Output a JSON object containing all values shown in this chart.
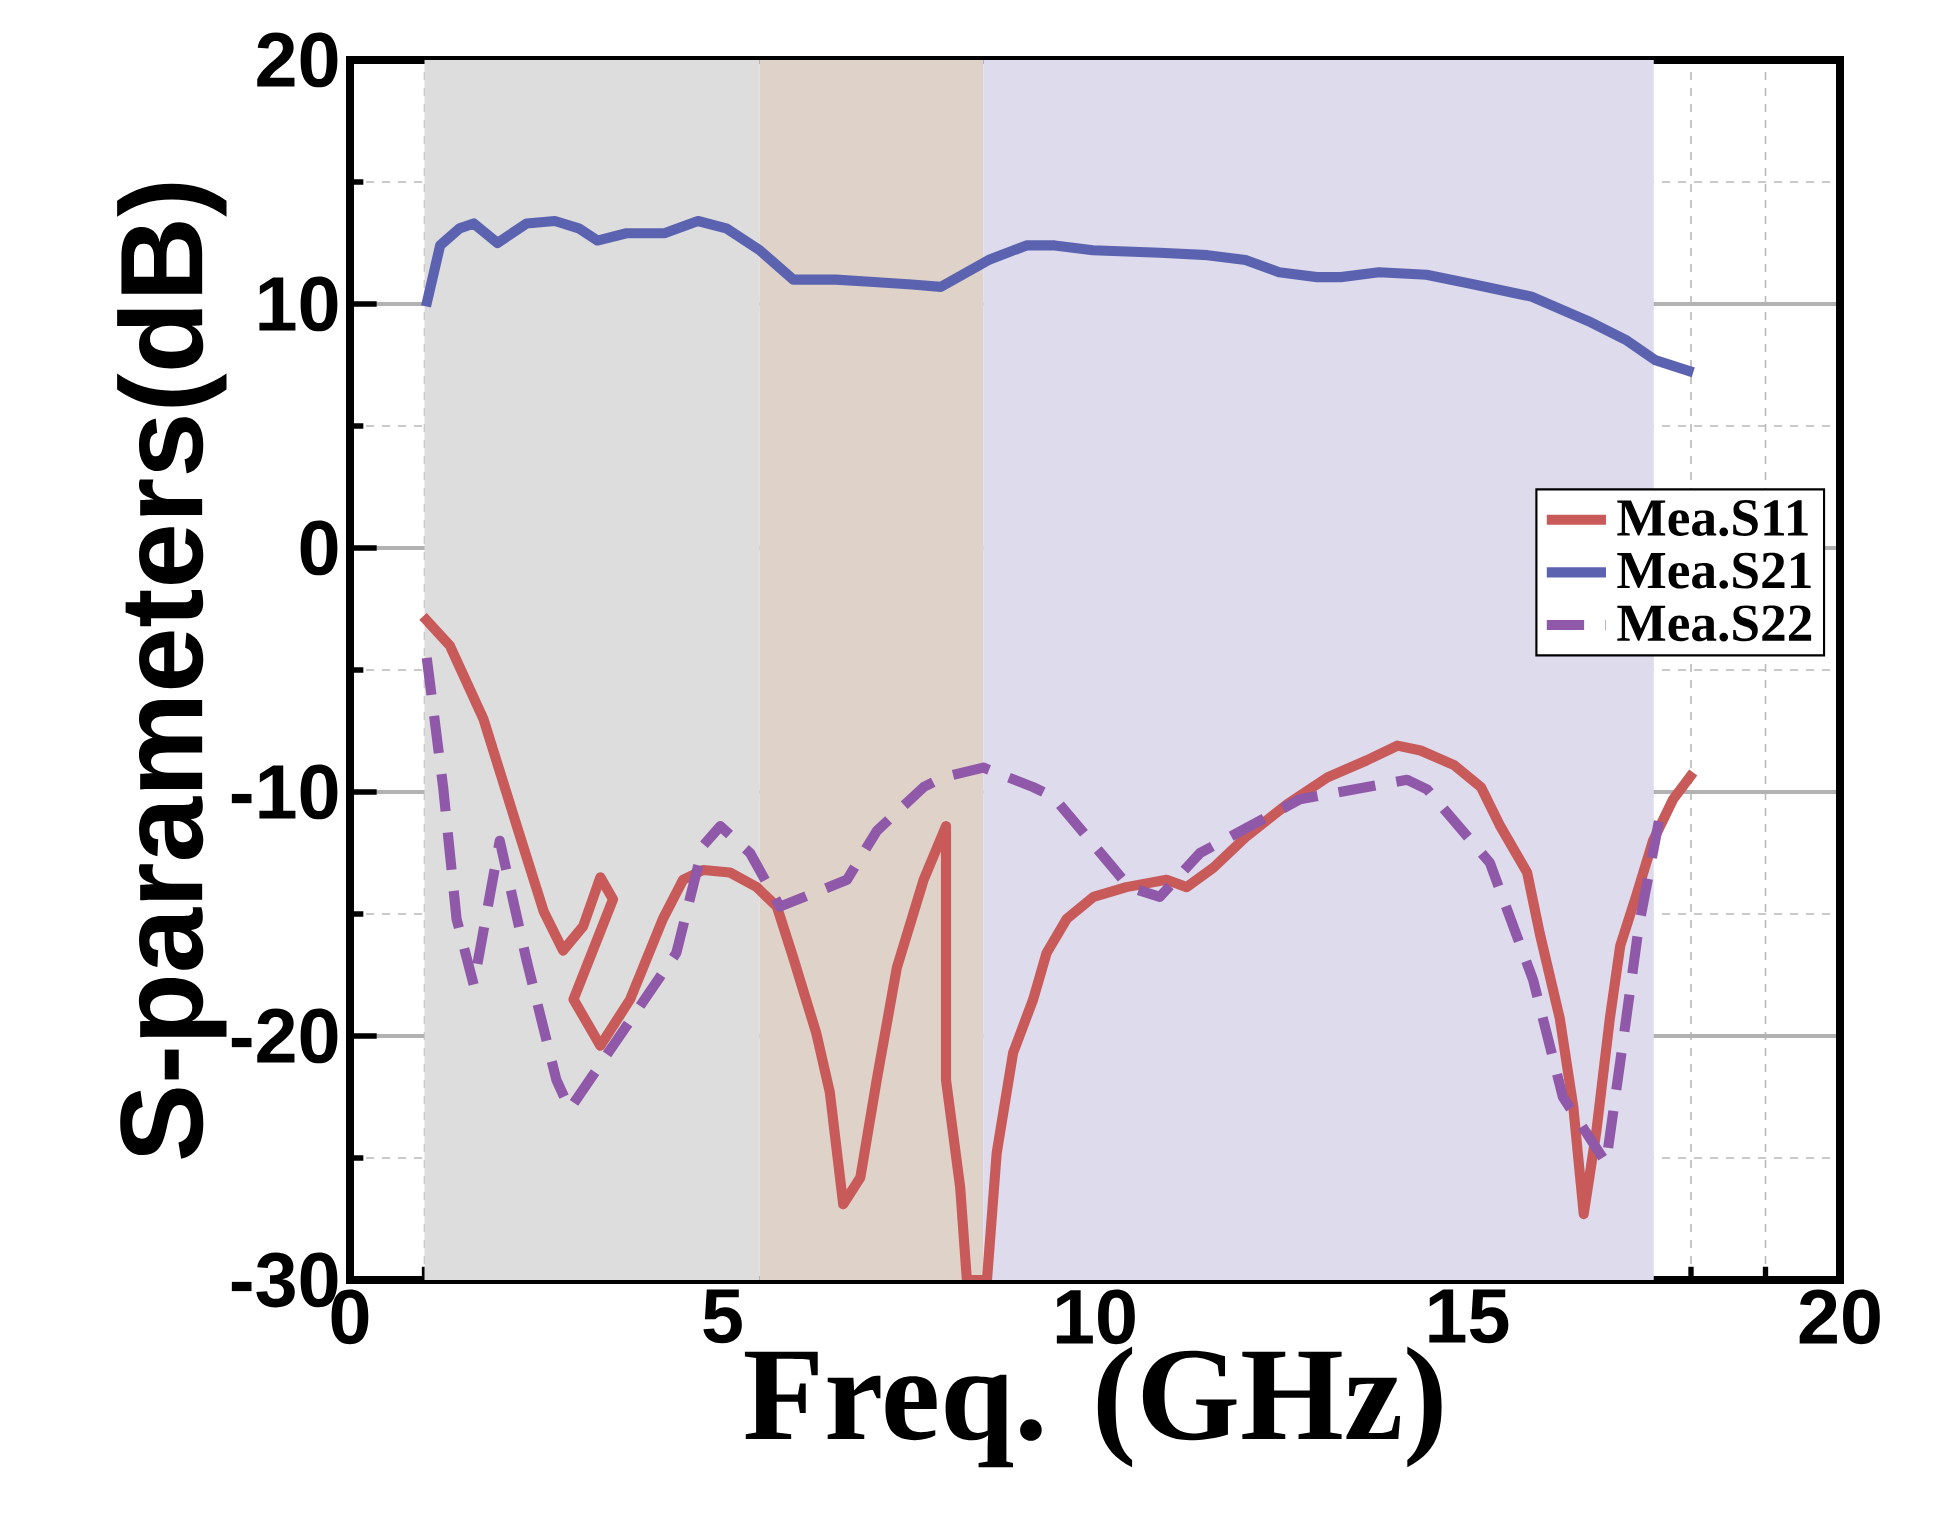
{
  "chart_data": {
    "type": "line",
    "xlabel": "Freq. (GHz)",
    "ylabel": "S-parameters(dB)",
    "xlim": [
      0,
      20
    ],
    "ylim": [
      -30,
      20
    ],
    "xticks": [
      0,
      5,
      10,
      15,
      20
    ],
    "yticks": [
      -30,
      -20,
      -10,
      0,
      10,
      20
    ],
    "grid": true,
    "legend": "right",
    "bands": [
      {
        "axis": "x",
        "from": 1,
        "to": 5.5,
        "color": "#dddddd"
      },
      {
        "axis": "x",
        "from": 5.5,
        "to": 8.5,
        "color": "#dfd3c9"
      },
      {
        "axis": "x",
        "from": 8.5,
        "to": 17.5,
        "color": "#dddbec"
      }
    ],
    "series": [
      {
        "name": "Mea.S11",
        "color": "#c85a5a",
        "line_style": "solid",
        "x": [
          0.98,
          1.34,
          1.79,
          2.24,
          2.6,
          2.86,
          3.13,
          3.36,
          3.53,
          3.0,
          3.36,
          3.76,
          4.2,
          4.47,
          4.74,
          5.1,
          5.46,
          5.73,
          5.95,
          6.26,
          6.44,
          6.62,
          6.85,
          7.07,
          7.34,
          7.7,
          8.0,
          8.0,
          8.19,
          8.28,
          8.46,
          8.55,
          8.68,
          8.9,
          9.17,
          9.35,
          9.62,
          9.98,
          10.42,
          10.96,
          11.23,
          11.59,
          12.04,
          12.58,
          13.12,
          13.65,
          14.06,
          14.37,
          14.82,
          15.18,
          15.44,
          15.8,
          15.97,
          16.24,
          16.42,
          16.56,
          16.73,
          16.91,
          17.05,
          17.27,
          17.49,
          17.76,
          18.03
        ],
        "values": [
          -2.8,
          -4.0,
          -7.0,
          -11.4,
          -14.9,
          -16.5,
          -15.5,
          -13.5,
          -14.4,
          -18.5,
          -20.4,
          -18.5,
          -15.2,
          -13.6,
          -13.2,
          -13.3,
          -13.9,
          -14.7,
          -16.8,
          -19.9,
          -22.3,
          -26.9,
          -25.8,
          -21.8,
          -17.2,
          -13.6,
          -11.4,
          -21.8,
          -26.2,
          -30,
          -30,
          -30,
          -24.8,
          -20.7,
          -18.5,
          -16.6,
          -15.2,
          -14.3,
          -13.9,
          -13.6,
          -13.9,
          -13.1,
          -11.8,
          -10.5,
          -9.4,
          -8.7,
          -8.1,
          -8.3,
          -8.9,
          -9.8,
          -11.4,
          -13.3,
          -15.8,
          -19.3,
          -22.9,
          -27.3,
          -23.9,
          -19.3,
          -16.3,
          -14.2,
          -12.0,
          -10.3,
          -9.2
        ]
      },
      {
        "name": "Mea.S21",
        "color": "#5b63b0",
        "line_style": "solid",
        "x": [
          1.02,
          1.21,
          1.47,
          1.66,
          1.98,
          2.37,
          2.75,
          3.07,
          3.32,
          3.71,
          4.22,
          4.67,
          5.05,
          5.5,
          5.95,
          6.52,
          7.03,
          7.54,
          7.93,
          8.57,
          9.08,
          9.46,
          9.97,
          10.87,
          11.51,
          12.02,
          12.47,
          12.98,
          13.3,
          13.81,
          14.45,
          15.09,
          15.86,
          16.62,
          17.14,
          17.52,
          18.03
        ],
        "values": [
          9.9,
          12.4,
          13.1,
          13.3,
          12.5,
          13.3,
          13.4,
          13.1,
          12.6,
          12.9,
          12.9,
          13.4,
          13.1,
          12.2,
          11.0,
          11.0,
          10.9,
          10.8,
          10.7,
          11.8,
          12.4,
          12.4,
          12.2,
          12.1,
          12.0,
          11.8,
          11.3,
          11.1,
          11.1,
          11.3,
          11.2,
          10.8,
          10.3,
          9.3,
          8.5,
          7.7,
          7.2
        ]
      },
      {
        "name": "Mea.S22",
        "color": "#9058a8",
        "line_style": "dashed",
        "x": [
          1.03,
          1.25,
          1.43,
          1.66,
          2.01,
          2.37,
          2.77,
          2.95,
          3.53,
          4.38,
          4.74,
          4.97,
          5.37,
          5.77,
          6.67,
          7.07,
          7.7,
          7.96,
          8.5,
          9.17,
          9.44,
          10.24,
          10.46,
          10.87,
          11.41,
          12.75,
          14.19,
          14.46,
          15.3,
          15.88,
          16.28,
          16.86,
          17.08,
          17.3,
          17.6
        ],
        "values": [
          -4.5,
          -9.8,
          -15.2,
          -17.9,
          -12.0,
          -16.9,
          -21.8,
          -23.0,
          -20.4,
          -16.6,
          -12.2,
          -11.4,
          -12.5,
          -14.7,
          -13.6,
          -11.6,
          -9.8,
          -9.4,
          -9.0,
          -9.8,
          -10.2,
          -13.1,
          -13.9,
          -14.3,
          -12.5,
          -10.3,
          -9.5,
          -9.9,
          -12.9,
          -17.7,
          -22.5,
          -25.2,
          -20.4,
          -15.5,
          -10.7
        ]
      }
    ]
  }
}
